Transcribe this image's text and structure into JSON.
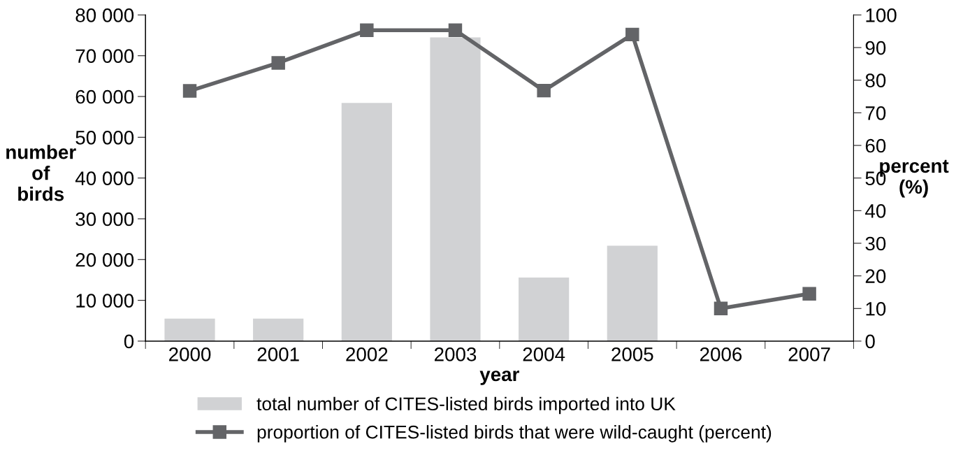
{
  "chart_data": {
    "type": "bar",
    "xlabel": "year",
    "ylabel": "number\nof\nbirds",
    "y2label": "percent\n(%)",
    "categories": [
      "2000",
      "2001",
      "2002",
      "2003",
      "2004",
      "2005",
      "2006",
      "2007"
    ],
    "series": [
      {
        "name": "total number of CITES-listed birds imported into UK",
        "color": "#d1d2d4",
        "values": [
          5500,
          5500,
          58400,
          74500,
          15600,
          23400,
          null,
          null
        ]
      },
      {
        "name": "proportion of CITES-listed birds that were wild-caught (percent)",
        "type": "line",
        "axis": "y2",
        "color": "#636467",
        "marker": "square",
        "values": [
          76.7,
          85.3,
          95.3,
          95.3,
          76.8,
          94.0,
          10.0,
          14.5
        ]
      }
    ],
    "ylim": [
      0,
      80000
    ],
    "yticks": [
      0,
      {
        "value": 10000,
        "label": "10 000"
      },
      {
        "value": 20000,
        "label": "20 000"
      },
      {
        "value": 30000,
        "label": "30 000"
      },
      {
        "value": 40000,
        "label": "40 000"
      },
      {
        "value": 50000,
        "label": "50 000"
      },
      {
        "value": 60000,
        "label": "60 000"
      },
      {
        "value": 70000,
        "label": "70 000"
      },
      {
        "value": 80000,
        "label": "80 000"
      }
    ],
    "y2lim": [
      0,
      100
    ],
    "y2ticks": [
      0,
      10,
      20,
      30,
      40,
      50,
      60,
      70,
      80,
      90,
      100
    ],
    "grid": false,
    "legend": "bottom"
  }
}
